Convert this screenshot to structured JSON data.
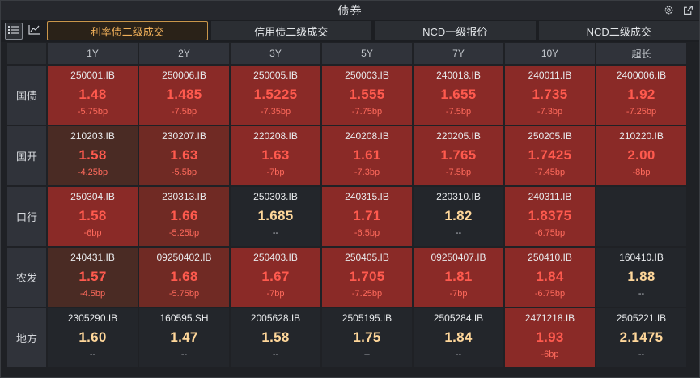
{
  "window": {
    "title": "债券"
  },
  "toolbar": {
    "view_buttons": [
      {
        "icon": "list-icon"
      },
      {
        "icon": "line-chart-icon"
      }
    ],
    "tabs": [
      {
        "label": "利率债二级成交",
        "active": true
      },
      {
        "label": "信用债二级成交",
        "active": false
      },
      {
        "label": "NCD一级报价",
        "active": false
      },
      {
        "label": "NCD二级成交",
        "active": false
      }
    ]
  },
  "columns": [
    "1Y",
    "2Y",
    "3Y",
    "5Y",
    "7Y",
    "10Y",
    "超长"
  ],
  "rows": [
    {
      "label": "国债",
      "cells": [
        {
          "code": "250001.IB",
          "yield": "1.48",
          "change": "-5.75bp",
          "tone": "red"
        },
        {
          "code": "250006.IB",
          "yield": "1.485",
          "change": "-7.5bp",
          "tone": "red"
        },
        {
          "code": "250005.IB",
          "yield": "1.5225",
          "change": "-7.35bp",
          "tone": "red"
        },
        {
          "code": "250003.IB",
          "yield": "1.555",
          "change": "-7.75bp",
          "tone": "red"
        },
        {
          "code": "240018.IB",
          "yield": "1.655",
          "change": "-7.5bp",
          "tone": "red"
        },
        {
          "code": "240011.IB",
          "yield": "1.735",
          "change": "-7.3bp",
          "tone": "red"
        },
        {
          "code": "2400006.IB",
          "yield": "1.92",
          "change": "-7.25bp",
          "tone": "red"
        }
      ]
    },
    {
      "label": "国开",
      "cells": [
        {
          "code": "210203.IB",
          "yield": "1.58",
          "change": "-4.25bp",
          "tone": "light"
        },
        {
          "code": "230207.IB",
          "yield": "1.63",
          "change": "-5.5bp",
          "tone": "mid"
        },
        {
          "code": "220208.IB",
          "yield": "1.63",
          "change": "-7bp",
          "tone": "red"
        },
        {
          "code": "240208.IB",
          "yield": "1.61",
          "change": "-7.3bp",
          "tone": "red"
        },
        {
          "code": "220205.IB",
          "yield": "1.765",
          "change": "-7.5bp",
          "tone": "red"
        },
        {
          "code": "250205.IB",
          "yield": "1.7425",
          "change": "-7.45bp",
          "tone": "red"
        },
        {
          "code": "210220.IB",
          "yield": "2.00",
          "change": "-8bp",
          "tone": "red"
        }
      ]
    },
    {
      "label": "口行",
      "cells": [
        {
          "code": "250304.IB",
          "yield": "1.58",
          "change": "-6bp",
          "tone": "red"
        },
        {
          "code": "230313.IB",
          "yield": "1.66",
          "change": "-5.25bp",
          "tone": "mid"
        },
        {
          "code": "250303.IB",
          "yield": "1.685",
          "change": "--",
          "tone": "neutral"
        },
        {
          "code": "240315.IB",
          "yield": "1.71",
          "change": "-6.5bp",
          "tone": "red"
        },
        {
          "code": "220310.IB",
          "yield": "1.82",
          "change": "--",
          "tone": "neutral"
        },
        {
          "code": "240311.IB",
          "yield": "1.8375",
          "change": "-6.75bp",
          "tone": "red"
        },
        {
          "code": "",
          "yield": "",
          "change": "",
          "tone": "empty"
        }
      ]
    },
    {
      "label": "农发",
      "cells": [
        {
          "code": "240431.IB",
          "yield": "1.57",
          "change": "-4.5bp",
          "tone": "light"
        },
        {
          "code": "09250402.IB",
          "yield": "1.68",
          "change": "-5.75bp",
          "tone": "mid"
        },
        {
          "code": "250403.IB",
          "yield": "1.67",
          "change": "-7bp",
          "tone": "red"
        },
        {
          "code": "250405.IB",
          "yield": "1.705",
          "change": "-7.25bp",
          "tone": "red"
        },
        {
          "code": "09250407.IB",
          "yield": "1.81",
          "change": "-7bp",
          "tone": "red"
        },
        {
          "code": "250410.IB",
          "yield": "1.84",
          "change": "-6.75bp",
          "tone": "red"
        },
        {
          "code": "160410.IB",
          "yield": "1.88",
          "change": "--",
          "tone": "neutral"
        }
      ]
    },
    {
      "label": "地方",
      "cells": [
        {
          "code": "2305290.IB",
          "yield": "1.60",
          "change": "--",
          "tone": "neutral"
        },
        {
          "code": "160595.SH",
          "yield": "1.47",
          "change": "--",
          "tone": "neutral"
        },
        {
          "code": "2005628.IB",
          "yield": "1.58",
          "change": "--",
          "tone": "neutral"
        },
        {
          "code": "2505195.IB",
          "yield": "1.75",
          "change": "--",
          "tone": "neutral"
        },
        {
          "code": "2505284.IB",
          "yield": "1.84",
          "change": "--",
          "tone": "neutral"
        },
        {
          "code": "2471218.IB",
          "yield": "1.93",
          "change": "-6bp",
          "tone": "red"
        },
        {
          "code": "2505221.IB",
          "yield": "2.1475",
          "change": "--",
          "tone": "neutral"
        }
      ]
    }
  ],
  "colors": {
    "accent": "#f0b05a",
    "up_bg": "#8a2a27",
    "down_text": "#ff5a4e",
    "neutral_text": "#ffd79a"
  }
}
